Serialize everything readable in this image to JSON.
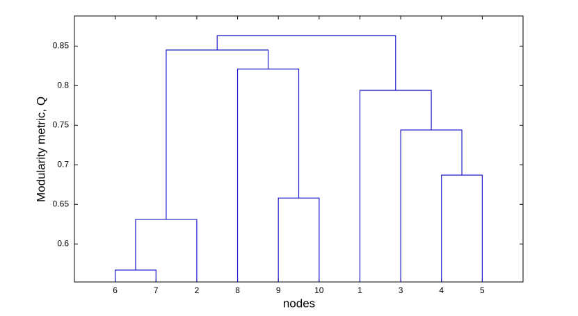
{
  "chart_data": {
    "type": "dendrogram",
    "xlabel": "nodes",
    "ylabel": "Modularity metric, Q",
    "color": "#1a1acc",
    "ylim": [
      0.552,
      0.888
    ],
    "yticks": [
      0.6,
      0.65,
      0.7,
      0.75,
      0.8,
      0.85
    ],
    "tree": {
      "height": 0.863,
      "children": [
        {
          "height": 0.845,
          "children": [
            {
              "height": 0.631,
              "children": [
                {
                  "height": 0.567,
                  "children": [
                    {
                      "label": "6"
                    },
                    {
                      "label": "7"
                    }
                  ]
                },
                {
                  "label": "2"
                }
              ]
            },
            {
              "height": 0.821,
              "children": [
                {
                  "label": "8"
                },
                {
                  "height": 0.658,
                  "children": [
                    {
                      "label": "9"
                    },
                    {
                      "label": "10"
                    }
                  ]
                }
              ]
            }
          ]
        },
        {
          "height": 0.794,
          "children": [
            {
              "label": "1"
            },
            {
              "height": 0.744,
              "children": [
                {
                  "label": "3"
                },
                {
                  "height": 0.687,
                  "children": [
                    {
                      "label": "4"
                    },
                    {
                      "label": "5"
                    }
                  ]
                }
              ]
            }
          ]
        }
      ]
    }
  }
}
